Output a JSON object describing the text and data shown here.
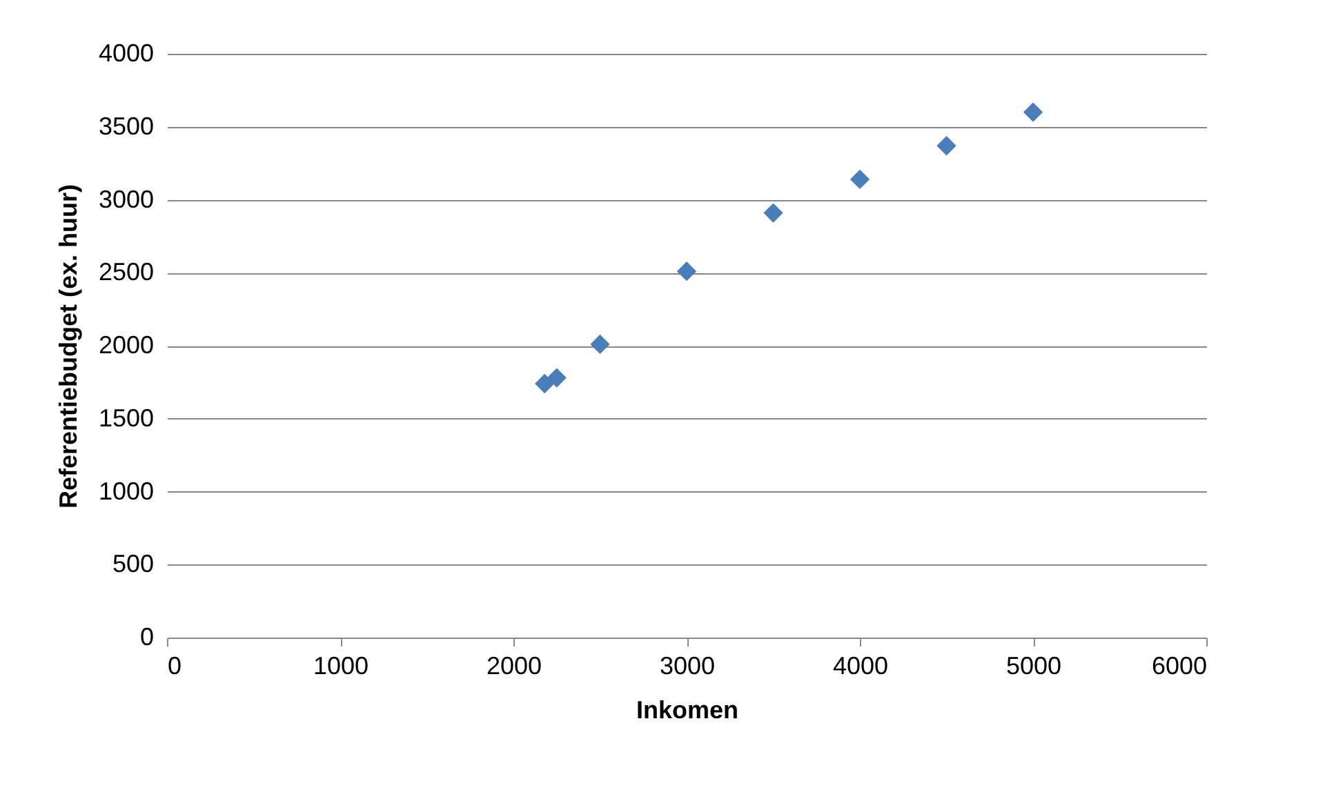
{
  "chart_data": {
    "type": "scatter",
    "xlabel": "Inkomen",
    "ylabel": "Referentiebudget (ex. huur)",
    "marker": "diamond",
    "grid": "y",
    "x": [
      2180,
      2250,
      2500,
      3000,
      3500,
      4000,
      4500,
      5000
    ],
    "series": [
      {
        "color": "#4a7ebb",
        "values": [
          1740,
          1780,
          2010,
          2510,
          2910,
          3140,
          3370,
          3600
        ]
      }
    ],
    "xlim": [
      0,
      6000
    ],
    "xticks": [
      0,
      1000,
      2000,
      3000,
      4000,
      5000,
      6000
    ],
    "ylim": [
      0,
      4000
    ],
    "yticks": [
      0,
      500,
      1000,
      1500,
      2000,
      2500,
      3000,
      3500,
      4000
    ]
  }
}
